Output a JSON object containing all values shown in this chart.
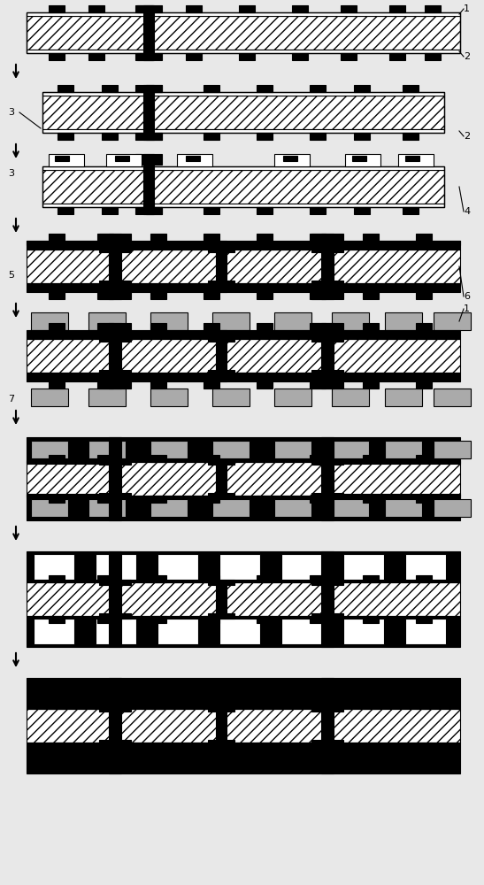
{
  "bg_color": "#e8e8e8",
  "hatch_fc": "#ffffff",
  "hatch_pattern": "///",
  "pad_color": "#000000",
  "gray_color": "#aaaaaa",
  "black": "#000000",
  "white": "#ffffff",
  "fig_width": 5.47,
  "fig_height": 10.0,
  "dpi": 100
}
